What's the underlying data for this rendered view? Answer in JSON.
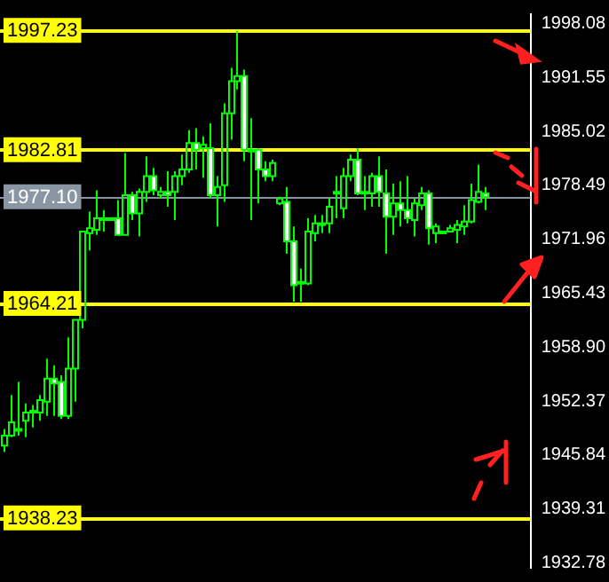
{
  "chart_data": {
    "type": "candlestick",
    "categories": [
      null,
      null,
      null,
      null,
      null,
      null,
      null,
      null,
      null,
      null,
      null,
      null,
      null,
      null,
      null,
      null,
      null,
      null,
      null,
      null,
      null,
      null,
      null,
      null,
      null,
      null,
      null,
      null,
      null,
      null,
      null,
      null,
      null,
      null,
      null,
      null,
      null,
      null,
      null,
      null,
      null,
      null,
      null,
      null,
      null,
      null,
      null,
      null,
      null,
      null,
      null,
      null,
      null,
      null,
      null,
      null,
      null,
      null,
      null,
      null,
      null,
      null,
      null,
      null,
      null,
      null,
      null,
      null,
      null,
      null,
      null,
      null,
      null,
      null,
      null
    ],
    "color": "#00ff00",
    "colors": [
      "#00ff00",
      "#00ff00",
      "#00ff00",
      "#00ff00",
      "#00ff00",
      "#00ff00",
      "#00ff00",
      "#ffffff",
      "#ffffff",
      "#00ff00",
      "#00ff00",
      "#00ff00",
      "#00ff00",
      "#00ff00",
      "#00ff00",
      "#00ff00",
      "#ffffff",
      "#00ff00",
      "#ffffff",
      "#00ff00",
      "#00ff00",
      "#ffffff",
      "#00ff00",
      "#ffffff",
      "#00ff00",
      "#00ff00",
      "#00ff00",
      "#ffffff",
      "#00ff00",
      "#ffffff",
      "#00ff00",
      "#00ff00",
      "#00ff00",
      "#00ff00",
      "#ffffff",
      "#00ff00",
      "#ffffff",
      "#ffffff",
      "#00ff00",
      "#00ff00",
      "#ffffff",
      "#ffffff",
      "#00ff00",
      "#00ff00",
      "#00ff00",
      "#00ff00",
      "#00ff00",
      "#00ff00",
      "#00ff00",
      "#00ff00",
      "#ffffff",
      "#00ff00",
      "#00ff00",
      "#ffffff",
      "#ffffff",
      "#00ff00",
      "#ffffff",
      "#ffffff",
      "#00ff00",
      "#00ff00",
      "#ffffff",
      "#00ff00",
      "#00ff00",
      "#00ff00",
      "#00ff00",
      "#00ff00",
      "#00ff00",
      "#00ff00",
      "#ffffff",
      null,
      null,
      null,
      null,
      null,
      null
    ],
    "ohlc": [
      [
        1947.0,
        1949.0,
        1946.2,
        1948.2
      ],
      [
        1948.2,
        1953.1,
        1948.0,
        1949.8
      ],
      [
        1948.8,
        1954.7,
        1948.2,
        1949.0
      ],
      [
        1950.0,
        1952.1,
        1948.0,
        1951.0
      ],
      [
        1951.0,
        1951.9,
        1949.2,
        1951.2
      ],
      [
        1951.0,
        1953.1,
        1950.0,
        1952.5
      ],
      [
        1952.3,
        1957.5,
        1950.6,
        1955.1
      ],
      [
        1955.1,
        1956.7,
        1950.6,
        1954.5
      ],
      [
        1954.7,
        1955.5,
        1950.2,
        1950.6
      ],
      [
        1950.6,
        1960.1,
        1950.2,
        1956.3
      ],
      [
        1956.3,
        1962.2,
        1952.3,
        1962.2
      ],
      [
        1962.2,
        1972.9,
        1961.2,
        1972.9
      ],
      [
        1972.7,
        1975.3,
        1970.6,
        1973.3
      ],
      [
        1973.1,
        1977.9,
        1972.5,
        1974.5
      ],
      [
        1974.5,
        1975.5,
        1972.9,
        1974.5
      ],
      [
        1974.5,
        1974.5,
        1974.5,
        1974.5
      ],
      [
        1974.5,
        1976.7,
        1972.5,
        1972.5
      ],
      [
        1972.5,
        1982.4,
        1972.5,
        1977.3
      ],
      [
        1977.3,
        1977.7,
        1974.3,
        1975.1
      ],
      [
        1975.1,
        1978.1,
        1972.3,
        1977.7
      ],
      [
        1977.7,
        1982.0,
        1976.5,
        1979.6
      ],
      [
        1979.6,
        1980.6,
        1977.3,
        1977.9
      ],
      [
        1977.3,
        1978.3,
        1976.9,
        1977.7
      ],
      [
        1977.7,
        1980.2,
        1975.9,
        1977.3
      ],
      [
        1977.7,
        1980.2,
        1974.3,
        1979.6
      ],
      [
        1979.6,
        1982.2,
        1978.5,
        1980.4
      ],
      [
        1980.4,
        1985.2,
        1980.0,
        1983.6
      ],
      [
        1983.6,
        1985.4,
        1980.4,
        1982.8
      ],
      [
        1983.0,
        1984.4,
        1979.4,
        1983.4
      ],
      [
        1983.0,
        1986.0,
        1976.9,
        1977.3
      ],
      [
        1977.3,
        1979.6,
        1973.5,
        1978.3
      ],
      [
        1978.5,
        1988.4,
        1976.5,
        1987.2
      ],
      [
        1987.2,
        1992.7,
        1984.0,
        1991.1
      ],
      [
        1991.1,
        1997.2,
        1990.1,
        1991.7
      ],
      [
        1991.7,
        1992.5,
        1981.4,
        1982.8
      ],
      [
        1982.6,
        1986.6,
        1974.3,
        1982.8
      ],
      [
        1982.8,
        1983.0,
        1976.3,
        1980.4
      ],
      [
        1980.4,
        1981.4,
        1979.0,
        1979.6
      ],
      [
        1979.6,
        1981.6,
        1979.0,
        1981.2
      ],
      [
        1976.3,
        1977.1,
        1976.1,
        1976.9
      ],
      [
        1976.5,
        1978.3,
        1970.2,
        1971.7
      ],
      [
        1971.7,
        1973.5,
        1964.4,
        1966.4
      ],
      [
        1966.6,
        1968.4,
        1964.4,
        1966.8
      ],
      [
        1966.6,
        1974.5,
        1966.4,
        1972.9
      ],
      [
        1972.7,
        1974.9,
        1971.7,
        1973.9
      ],
      [
        1973.9,
        1974.9,
        1972.7,
        1973.9
      ],
      [
        1973.9,
        1976.9,
        1972.7,
        1975.9
      ],
      [
        1977.5,
        1979.6,
        1974.5,
        1977.7
      ],
      [
        1975.7,
        1980.6,
        1974.5,
        1979.6
      ],
      [
        1979.6,
        1982.2,
        1979.0,
        1981.6
      ],
      [
        1981.6,
        1983.0,
        1977.3,
        1977.5
      ],
      [
        1977.5,
        1979.6,
        1975.5,
        1977.7
      ],
      [
        1977.5,
        1980.0,
        1975.9,
        1979.6
      ],
      [
        1979.6,
        1982.0,
        1975.9,
        1977.7
      ],
      [
        1977.5,
        1980.4,
        1970.2,
        1974.7
      ],
      [
        1974.7,
        1978.7,
        1972.5,
        1976.3
      ],
      [
        1976.3,
        1979.0,
        1973.5,
        1975.5
      ],
      [
        1975.5,
        1979.6,
        1973.9,
        1974.5
      ],
      [
        1974.3,
        1976.9,
        1972.3,
        1976.3
      ],
      [
        1976.1,
        1978.3,
        1975.5,
        1977.5
      ],
      [
        1977.5,
        1977.9,
        1971.3,
        1973.3
      ],
      [
        1972.7,
        1973.9,
        1971.5,
        1973.5
      ],
      [
        1972.9,
        1972.9,
        1972.9,
        1972.9
      ],
      [
        1972.9,
        1973.7,
        1972.9,
        1973.3
      ],
      [
        1973.1,
        1974.3,
        1971.5,
        1973.7
      ],
      [
        1973.5,
        1976.1,
        1972.5,
        1974.1
      ],
      [
        1974.1,
        1978.7,
        1973.9,
        1976.7
      ],
      [
        1976.5,
        1981.0,
        1976.3,
        1977.7
      ],
      [
        1977.5,
        1978.3,
        1975.5,
        1977.1
      ],
      null,
      null,
      null,
      null,
      null,
      null
    ],
    "ylim": [
      1932.2,
      1999.2
    ],
    "yticks": [
      1998.08,
      1991.55,
      1985.02,
      1978.49,
      1971.96,
      1965.43,
      {
        "value": 1958.9,
        "label": "1958.90"
      },
      1952.37,
      1945.84,
      1939.31,
      1932.78
    ],
    "tick_labels": "y",
    "grid": false,
    "legend": false,
    "ref_lines": [
      {
        "axis": "y",
        "value": 1997.23,
        "label": "1997.23",
        "color": "#ffff00"
      },
      {
        "axis": "y",
        "value": 1982.81,
        "label": "1982.81",
        "color": "#ffff00"
      },
      {
        "axis": "y",
        "value": 1977.1,
        "label": "1977.10",
        "color": "#8a96a3"
      },
      {
        "axis": "y",
        "value": 1964.21,
        "label": "1964.21",
        "color": "#ffff00"
      },
      {
        "axis": "y",
        "value": 1938.23,
        "label": "1938.23",
        "color": "#ffff00"
      }
    ]
  }
}
